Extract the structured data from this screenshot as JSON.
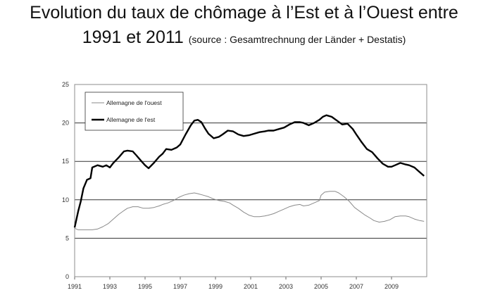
{
  "header": {
    "title_line1": "Evolution du taux de chômage à l’Est et à l’Ouest entre",
    "title_line2": "1991 et 2011",
    "source": "(source : Gesamtrechnung der Länder + Destatis)"
  },
  "chart_data": {
    "type": "line",
    "title": "Evolution du taux de chômage à l’Est et à l’Ouest entre 1991 et 2011",
    "xlim": [
      1991,
      2011
    ],
    "ylim": [
      0,
      25
    ],
    "xticks": [
      "1991",
      "1993",
      "1995",
      "1997",
      "1999",
      "2001",
      "2003",
      "2005",
      "2007",
      "2009"
    ],
    "yticks": [
      "0",
      "5",
      "10",
      "15",
      "20",
      "25"
    ],
    "grid": "horizontal",
    "legend_position": "top-left",
    "series": [
      {
        "name": "Allemagne de l'ouest",
        "color": "#8a8a8a",
        "x": [
          1991.0,
          1991.2,
          1991.5,
          1991.8,
          1992.0,
          1992.3,
          1992.6,
          1992.9,
          1993.2,
          1993.5,
          1993.8,
          1994.0,
          1994.3,
          1994.6,
          1994.9,
          1995.2,
          1995.5,
          1995.8,
          1996.0,
          1996.3,
          1996.6,
          1996.9,
          1997.2,
          1997.5,
          1997.8,
          1998.0,
          1998.3,
          1998.6,
          1998.9,
          1999.2,
          1999.5,
          1999.8,
          2000.0,
          2000.3,
          2000.6,
          2000.9,
          2001.2,
          2001.5,
          2001.8,
          2002.0,
          2002.3,
          2002.6,
          2002.9,
          2003.2,
          2003.5,
          2003.8,
          2004.0,
          2004.3,
          2004.6,
          2004.9,
          2005.0,
          2005.2,
          2005.5,
          2005.8,
          2006.0,
          2006.3,
          2006.6,
          2006.9,
          2007.2,
          2007.5,
          2007.8,
          2008.0,
          2008.3,
          2008.6,
          2008.9,
          2009.2,
          2009.5,
          2009.8,
          2010.0,
          2010.3,
          2010.6,
          2010.85
        ],
        "values": [
          6.3,
          6.1,
          6.1,
          6.1,
          6.1,
          6.2,
          6.5,
          6.9,
          7.5,
          8.1,
          8.6,
          8.9,
          9.1,
          9.1,
          8.9,
          8.9,
          9.0,
          9.2,
          9.4,
          9.6,
          9.9,
          10.3,
          10.6,
          10.8,
          10.9,
          10.8,
          10.6,
          10.4,
          10.1,
          9.9,
          9.8,
          9.6,
          9.3,
          8.9,
          8.4,
          8.0,
          7.8,
          7.8,
          7.9,
          8.0,
          8.2,
          8.5,
          8.8,
          9.1,
          9.3,
          9.4,
          9.2,
          9.3,
          9.6,
          9.9,
          10.6,
          11.0,
          11.1,
          11.1,
          10.9,
          10.4,
          9.8,
          9.0,
          8.5,
          8.0,
          7.6,
          7.3,
          7.1,
          7.2,
          7.4,
          7.8,
          7.9,
          7.9,
          7.8,
          7.5,
          7.3,
          7.2
        ]
      },
      {
        "name": "Allemagne de l'est",
        "color": "#000000",
        "x": [
          1991.0,
          1991.2,
          1991.35,
          1991.5,
          1991.7,
          1991.9,
          1992.0,
          1992.3,
          1992.6,
          1992.8,
          1993.0,
          1993.2,
          1993.5,
          1993.8,
          1994.0,
          1994.3,
          1994.5,
          1994.8,
          1995.0,
          1995.2,
          1995.5,
          1995.8,
          1996.0,
          1996.2,
          1996.5,
          1996.8,
          1997.0,
          1997.3,
          1997.6,
          1997.8,
          1998.0,
          1998.2,
          1998.4,
          1998.6,
          1998.9,
          1999.2,
          1999.4,
          1999.7,
          2000.0,
          2000.3,
          2000.6,
          2000.9,
          2001.2,
          2001.5,
          2001.8,
          2002.0,
          2002.3,
          2002.6,
          2002.9,
          2003.2,
          2003.5,
          2003.8,
          2004.0,
          2004.3,
          2004.6,
          2004.9,
          2005.1,
          2005.3,
          2005.6,
          2005.9,
          2006.2,
          2006.5,
          2006.8,
          2007.0,
          2007.3,
          2007.6,
          2007.9,
          2008.2,
          2008.5,
          2008.8,
          2009.0,
          2009.2,
          2009.5,
          2009.8,
          2010.0,
          2010.3,
          2010.6,
          2010.85
        ],
        "values": [
          6.4,
          8.5,
          9.8,
          11.5,
          12.6,
          12.8,
          14.2,
          14.5,
          14.3,
          14.5,
          14.2,
          14.8,
          15.5,
          16.3,
          16.4,
          16.3,
          15.8,
          15.0,
          14.5,
          14.1,
          14.8,
          15.6,
          16.0,
          16.6,
          16.5,
          16.8,
          17.2,
          18.5,
          19.7,
          20.3,
          20.4,
          20.1,
          19.3,
          18.6,
          18.0,
          18.2,
          18.5,
          19.0,
          18.9,
          18.5,
          18.3,
          18.4,
          18.6,
          18.8,
          18.9,
          19.0,
          19.0,
          19.2,
          19.4,
          19.8,
          20.1,
          20.1,
          20.0,
          19.7,
          20.0,
          20.4,
          20.8,
          21.0,
          20.8,
          20.3,
          19.8,
          19.9,
          19.2,
          18.5,
          17.5,
          16.6,
          16.2,
          15.4,
          14.7,
          14.3,
          14.3,
          14.5,
          14.8,
          14.6,
          14.5,
          14.2,
          13.6,
          13.1
        ]
      }
    ]
  }
}
